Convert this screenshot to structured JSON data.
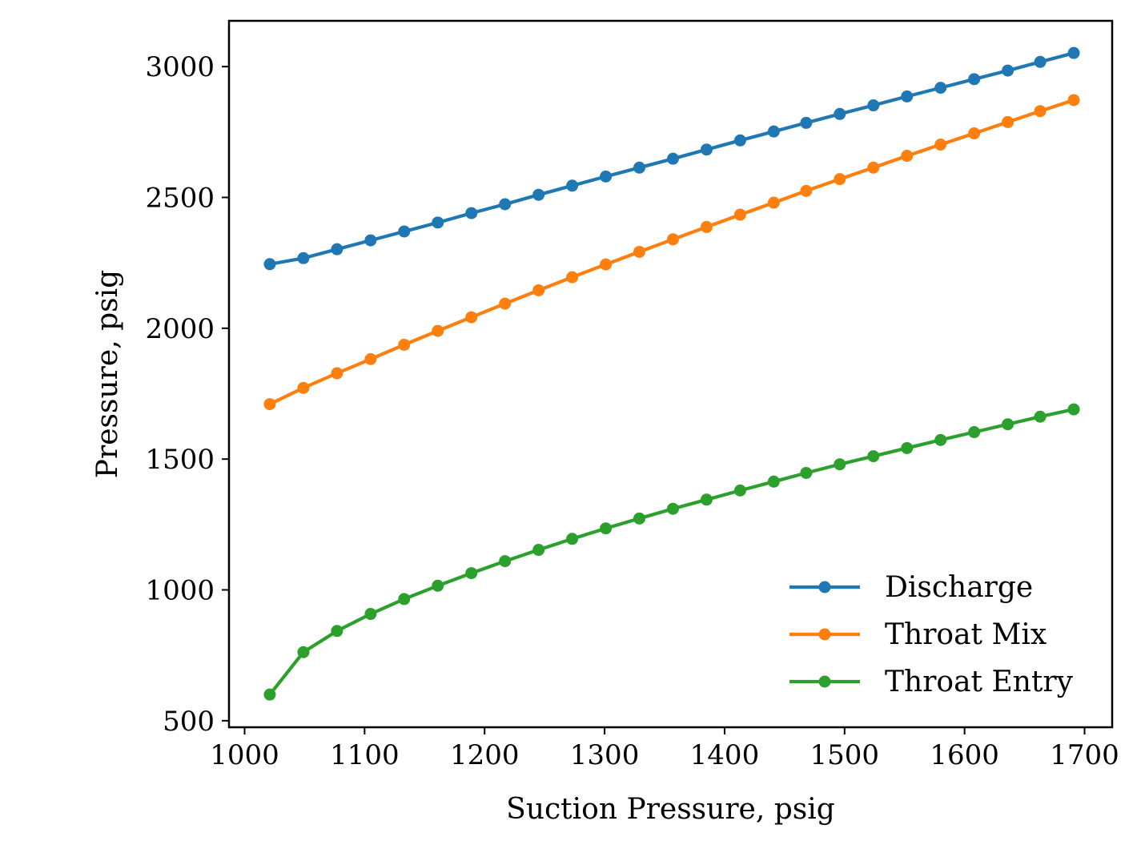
{
  "chart_data": {
    "type": "line",
    "title": "",
    "xlabel": "Suction Pressure, psig",
    "ylabel": "Pressure, psig",
    "xlim": [
      987,
      1723
    ],
    "ylim": [
      475,
      3175
    ],
    "xticks": [
      1000,
      1100,
      1200,
      1300,
      1400,
      1500,
      1600,
      1700
    ],
    "yticks": [
      500,
      1000,
      1500,
      2000,
      2500,
      3000
    ],
    "grid": false,
    "legend_position": "lower-right",
    "markers": true,
    "x": [
      1021,
      1049,
      1077,
      1105,
      1133,
      1161,
      1189,
      1217,
      1245,
      1273,
      1301,
      1329,
      1357,
      1385,
      1413,
      1441,
      1468,
      1496,
      1524,
      1552,
      1580,
      1608,
      1636,
      1663,
      1691
    ],
    "series": [
      {
        "name": "Discharge",
        "color": "#1f77b4",
        "values": [
          2245,
          2268,
          2302,
          2336,
          2370,
          2404,
          2440,
          2474,
          2510,
          2545,
          2580,
          2614,
          2648,
          2683,
          2718,
          2752,
          2785,
          2819,
          2852,
          2886,
          2919,
          2952,
          2985,
          3018,
          3052
        ]
      },
      {
        "name": "Throat Mix",
        "color": "#ff7f0e",
        "values": [
          1710,
          1772,
          1828,
          1882,
          1937,
          1990,
          2042,
          2094,
          2145,
          2195,
          2244,
          2292,
          2340,
          2387,
          2434,
          2480,
          2525,
          2570,
          2614,
          2659,
          2702,
          2745,
          2788,
          2830,
          2872
        ]
      },
      {
        "name": "Throat Entry",
        "color": "#2ca02c",
        "values": [
          600,
          762,
          843,
          908,
          965,
          1016,
          1064,
          1110,
          1153,
          1195,
          1235,
          1273,
          1310,
          1345,
          1380,
          1414,
          1447,
          1480,
          1511,
          1542,
          1573,
          1603,
          1633,
          1662,
          1690
        ]
      }
    ]
  }
}
